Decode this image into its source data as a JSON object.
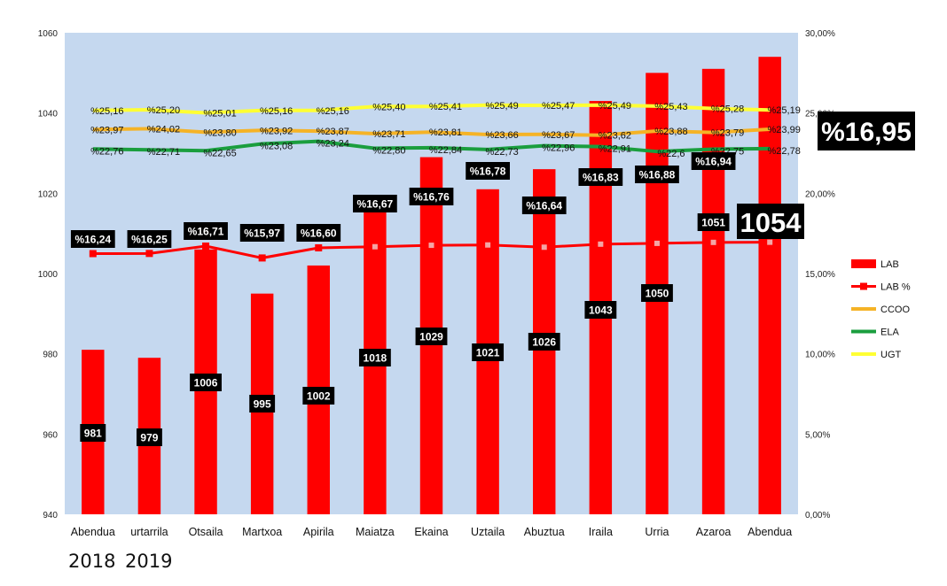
{
  "chart_data": {
    "type": "bar+line",
    "categories": [
      "Abendua",
      "urtarrila",
      "Otsaila",
      "Martxoa",
      "Apirila",
      "Maiatza",
      "Ekaina",
      "Uztaila",
      "Abuztua",
      "Iraila",
      "Urria",
      "Azaroa",
      "Abendua"
    ],
    "year_labels": [
      "2018",
      "2019"
    ],
    "left_axis": {
      "ylim": [
        940,
        1060
      ],
      "ticks": [
        940,
        960,
        980,
        1000,
        1020,
        1040,
        1060
      ]
    },
    "right_axis": {
      "ylim": [
        0,
        30
      ],
      "ticks": [
        0,
        5,
        10,
        15,
        20,
        25,
        30
      ],
      "tick_labels": [
        "0,00%",
        "5,00%",
        "10,00%",
        "15,00%",
        "20,00%",
        "25,00%",
        "30,00%"
      ]
    },
    "series": [
      {
        "name": "LAB",
        "kind": "bar",
        "axis": "left",
        "color": "#ff0000",
        "values": [
          981,
          979,
          1006,
          995,
          1002,
          1018,
          1029,
          1021,
          1026,
          1043,
          1050,
          1051,
          1054
        ],
        "labels": [
          "981",
          "979",
          "1006",
          "995",
          "1002",
          "1018",
          "1029",
          "1021",
          "1026",
          "1043",
          "1050",
          "1051",
          "1054"
        ]
      },
      {
        "name": "LAB %",
        "kind": "line-marker",
        "axis": "right",
        "color": "#ff0000",
        "values": [
          16.24,
          16.25,
          16.71,
          15.97,
          16.6,
          16.67,
          16.76,
          16.78,
          16.64,
          16.83,
          16.88,
          16.94,
          16.95
        ],
        "labels": [
          "%16,24",
          "%16,25",
          "%16,71",
          "%15,97",
          "%16,60",
          "%16,67",
          "%16,76",
          "%16,78",
          "%16,64",
          "%16,83",
          "%16,88",
          "%16,94",
          "%16,95"
        ]
      },
      {
        "name": "CCOO",
        "kind": "line",
        "axis": "right",
        "color": "#f5b326",
        "values": [
          23.97,
          24.02,
          23.8,
          23.92,
          23.87,
          23.71,
          23.81,
          23.66,
          23.67,
          23.62,
          23.88,
          23.79,
          23.99
        ],
        "labels": [
          "%23,97",
          "%24,02",
          "%23,80",
          "%23,92",
          "%23,87",
          "%23,71",
          "%23,81",
          "%23,66",
          "%23,67",
          "%23,62",
          "%23,88",
          "%23,79",
          "%23,99"
        ]
      },
      {
        "name": "ELA",
        "kind": "line",
        "axis": "right",
        "color": "#1a9e3e",
        "values": [
          22.76,
          22.71,
          22.65,
          23.08,
          23.24,
          22.8,
          22.84,
          22.73,
          22.96,
          22.91,
          22.6,
          22.75,
          22.78
        ],
        "labels": [
          "%22,76",
          "%22,71",
          "%22,65",
          "%23,08",
          "%23,24",
          "%22,80",
          "%22,84",
          "%22,73",
          "%22,96",
          "%22,91",
          "%22,6",
          "%22,75",
          "%22,78"
        ]
      },
      {
        "name": "UGT",
        "kind": "line",
        "axis": "right",
        "color": "#ffff33",
        "values": [
          25.16,
          25.2,
          25.01,
          25.16,
          25.16,
          25.4,
          25.41,
          25.49,
          25.47,
          25.49,
          25.43,
          25.28,
          25.19
        ],
        "labels": [
          "%25,16",
          "%25,20",
          "%25,01",
          "%25,16",
          "%25,16",
          "%25,40",
          "%25,41",
          "%25,49",
          "%25,47",
          "%25,49",
          "%25,43",
          "%25,28",
          "%25,19"
        ]
      }
    ],
    "highlight": {
      "value_label": "1054",
      "percent_label": "%16,95"
    },
    "legend": {
      "position": "right",
      "entries": [
        "LAB",
        "LAB %",
        "CCOO",
        "ELA",
        "UGT"
      ]
    },
    "colors": {
      "plot_bg": "#c5d8ef",
      "label_bg": "#000000",
      "label_text": "#ffffff"
    }
  }
}
